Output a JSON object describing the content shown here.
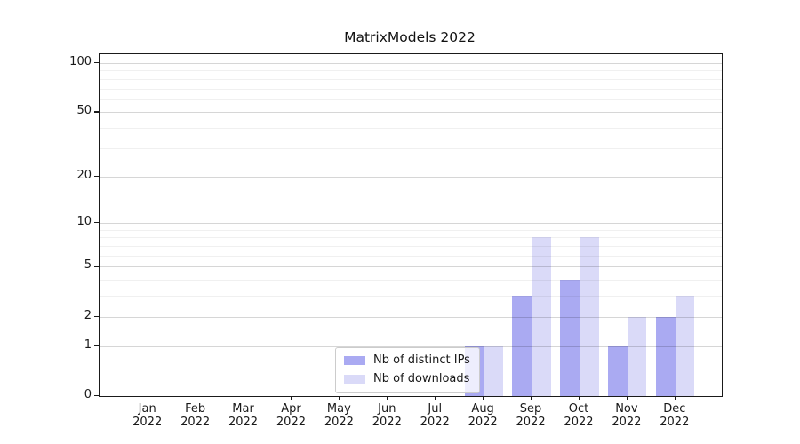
{
  "title": "MatrixModels 2022",
  "chart_data": {
    "type": "bar",
    "title": "MatrixModels 2022",
    "categories": [
      {
        "month": "Jan",
        "year": "2022"
      },
      {
        "month": "Feb",
        "year": "2022"
      },
      {
        "month": "Mar",
        "year": "2022"
      },
      {
        "month": "Apr",
        "year": "2022"
      },
      {
        "month": "May",
        "year": "2022"
      },
      {
        "month": "Jun",
        "year": "2022"
      },
      {
        "month": "Jul",
        "year": "2022"
      },
      {
        "month": "Aug",
        "year": "2022"
      },
      {
        "month": "Sep",
        "year": "2022"
      },
      {
        "month": "Oct",
        "year": "2022"
      },
      {
        "month": "Nov",
        "year": "2022"
      },
      {
        "month": "Dec",
        "year": "2022"
      }
    ],
    "series": [
      {
        "name": "Nb of distinct IPs",
        "color": "#aaaaf2",
        "values": [
          0,
          0,
          0,
          0,
          0,
          0,
          0,
          1,
          3,
          4,
          1,
          2
        ]
      },
      {
        "name": "Nb of downloads",
        "color": "#dadaf8",
        "values": [
          0,
          0,
          0,
          0,
          0,
          0,
          0,
          1,
          8,
          8,
          2,
          3
        ]
      }
    ],
    "yscale": "log1p",
    "ylim": [
      0,
      113
    ],
    "yticks_major": [
      0,
      1,
      2,
      5,
      10,
      20,
      50,
      100
    ],
    "yticks_minor": [
      3,
      4,
      6,
      7,
      8,
      9,
      30,
      40,
      60,
      70,
      80,
      90
    ],
    "grid": true,
    "legend_position": "inside-bottom-center"
  }
}
